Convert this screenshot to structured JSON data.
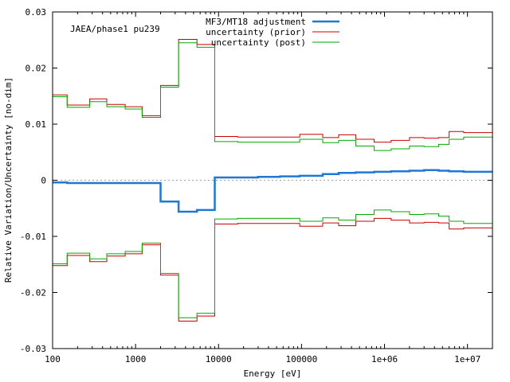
{
  "chart_data": {
    "type": "line",
    "annotation": "JAEA/phase1 pu239",
    "xlabel": "Energy [eV]",
    "ylabel": "Relative Variation/Uncertainty [no-dim]",
    "xscale": "log",
    "xlim": [
      100,
      20000000
    ],
    "ylim": [
      -0.03,
      0.03
    ],
    "xtick_values": [
      100,
      1000,
      10000,
      100000,
      1000000,
      10000000
    ],
    "xtick_labels": [
      "100",
      "1000",
      "10000",
      "100000",
      "1e+06",
      "1e+07"
    ],
    "ytick_values": [
      0.03,
      0.02,
      0.01,
      0,
      -0.01,
      -0.02,
      -0.03
    ],
    "ytick_labels": [
      "0.03",
      "0.02",
      "0.01",
      "0",
      "-0.01",
      "-0.02",
      "-0.03"
    ],
    "legend_position": "top-center",
    "zero_line": true,
    "bin_edges": [
      100,
      150,
      280,
      450,
      750,
      1200,
      2000,
      3300,
      5500,
      9000,
      17000,
      30000,
      55000,
      95000,
      180000,
      280000,
      450000,
      750000,
      1200000,
      2000000,
      3000000,
      4500000,
      6000000,
      9000000,
      20000000
    ],
    "series": [
      {
        "name": "MF3/MT18 adjustment",
        "color": "#1f78d4",
        "style": "thick",
        "values": [
          -0.0004,
          -0.0005,
          -0.0005,
          -0.0005,
          -0.0005,
          -0.0005,
          -0.0038,
          -0.0056,
          -0.0053,
          0.0005,
          0.0005,
          0.0006,
          0.0007,
          0.0008,
          0.0011,
          0.0013,
          0.0014,
          0.0015,
          0.0016,
          0.0017,
          0.0018,
          0.0017,
          0.0016,
          0.0015
        ]
      },
      {
        "name": "uncertainty (prior)",
        "color": "#cc0000",
        "style": "band",
        "values": [
          0.0152,
          0.0134,
          0.0145,
          0.0135,
          0.0131,
          0.0115,
          0.0169,
          0.0251,
          0.0242,
          0.0078,
          0.0077,
          0.0077,
          0.0077,
          0.0082,
          0.0076,
          0.0081,
          0.0073,
          0.0068,
          0.0071,
          0.0076,
          0.0075,
          0.0076,
          0.0087,
          0.0085
        ]
      },
      {
        "name": "uncertainty (post)",
        "color": "#00aa00",
        "style": "band",
        "values": [
          0.0149,
          0.013,
          0.014,
          0.0131,
          0.0127,
          0.0112,
          0.0166,
          0.0245,
          0.0237,
          0.0069,
          0.0068,
          0.0068,
          0.0068,
          0.0073,
          0.0067,
          0.0071,
          0.0061,
          0.0053,
          0.0056,
          0.0061,
          0.006,
          0.0064,
          0.0073,
          0.0077
        ]
      }
    ]
  }
}
